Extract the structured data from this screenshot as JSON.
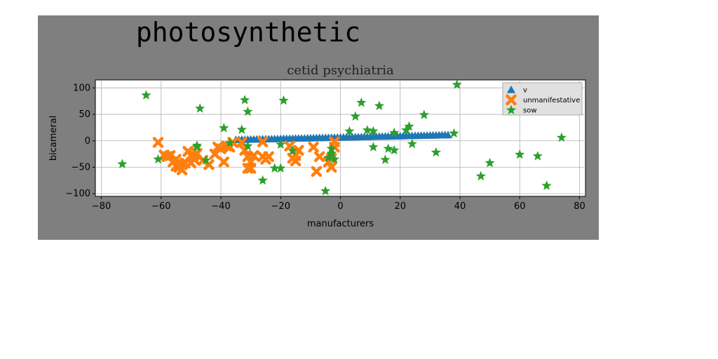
{
  "chart_data": {
    "type": "scatter",
    "suptitle": "photosynthetic",
    "title": "cetid psychiatria",
    "xlabel": "manufacturers",
    "ylabel": "bicameral",
    "xlim": [
      -82,
      82
    ],
    "ylim": [
      -105,
      115
    ],
    "xticks": [
      -80,
      -60,
      -40,
      -20,
      0,
      20,
      40,
      60,
      80
    ],
    "yticks": [
      -100,
      -50,
      0,
      50,
      100
    ],
    "grid": true,
    "legend_position": "top-right",
    "series": [
      {
        "name": "v",
        "marker": "triangle",
        "color": "#1f77b4",
        "x": [
          -35,
          -34,
          -33,
          -32,
          -31,
          -30,
          -29,
          -28,
          -27,
          -26,
          -25,
          -24,
          -23,
          -22,
          -21,
          -20,
          -19,
          -18,
          -17,
          -16,
          -15,
          -14,
          -13,
          -12,
          -11,
          -10,
          -9,
          -8,
          -7,
          -6,
          -5,
          -4,
          -3,
          -2,
          -1,
          0,
          1,
          2,
          3,
          4,
          5,
          6,
          7,
          8,
          9,
          10,
          11,
          12,
          13,
          14,
          15,
          16,
          17,
          18,
          19,
          20,
          21,
          22,
          23,
          24,
          25,
          26,
          27,
          28,
          29,
          30,
          31,
          32,
          33,
          34,
          35,
          36
        ],
        "y": [
          2,
          2.1,
          2.3,
          2.4,
          2.5,
          2.6,
          2.8,
          2.9,
          3,
          3.2,
          3.3,
          3.4,
          3.5,
          3.7,
          3.8,
          3.9,
          4.1,
          4.2,
          4.3,
          4.4,
          4.6,
          4.7,
          4.8,
          4.9,
          5.1,
          5.2,
          5.3,
          5.5,
          5.6,
          5.7,
          5.8,
          6,
          6.1,
          6.2,
          6.3,
          6.5,
          6.6,
          6.7,
          6.9,
          7,
          7.1,
          7.2,
          7.4,
          7.5,
          7.6,
          7.7,
          7.9,
          8,
          8.1,
          8.3,
          8.4,
          8.5,
          8.6,
          8.8,
          8.9,
          9,
          9.1,
          9.3,
          9.4,
          9.5,
          9.7,
          9.8,
          9.9,
          10,
          10.2,
          10.3,
          10.4,
          10.5,
          10.7,
          10.8,
          10.9,
          11
        ]
      },
      {
        "name": "unmanifestative",
        "marker": "x",
        "color": "#ff7f0e",
        "x": [
          -61,
          -59,
          -58,
          -57,
          -56,
          -55,
          -55,
          -54,
          -54,
          -53,
          -53,
          -52,
          -51,
          -50,
          -50,
          -49,
          -49,
          -48,
          -46,
          -44,
          -42,
          -41,
          -40,
          -39,
          -38,
          -37,
          -36,
          -33,
          -32,
          -31,
          -31,
          -30,
          -30,
          -29,
          -26,
          -26,
          -25,
          -24,
          -17,
          -16,
          -15,
          -15,
          -14,
          -9,
          -8,
          -7,
          -4,
          -3,
          -3,
          -2,
          -2
        ],
        "y": [
          -3,
          -27,
          -30,
          -28,
          -40,
          -48,
          -35,
          -50,
          -43,
          -45,
          -55,
          -42,
          -20,
          -28,
          -42,
          -35,
          -28,
          -24,
          -37,
          -45,
          -25,
          -12,
          -15,
          -40,
          -10,
          -12,
          -3,
          -3,
          -18,
          -30,
          -52,
          -40,
          -52,
          -28,
          -2,
          -30,
          -35,
          -30,
          -10,
          -33,
          -38,
          -28,
          -18,
          -12,
          -58,
          -30,
          -40,
          -50,
          -33,
          -12,
          -2
        ]
      },
      {
        "name": "sow",
        "marker": "star",
        "color": "#2ca02c",
        "x": [
          -73,
          -65,
          -61,
          -48,
          -47,
          -45,
          -48,
          -39,
          -37,
          -33,
          -32,
          -31,
          -31,
          -26,
          -22,
          -20,
          -20,
          -19,
          -16,
          -5,
          -4,
          -3,
          -3,
          -2,
          3,
          5,
          7,
          9,
          11,
          11,
          13,
          15,
          16,
          18,
          18,
          22,
          23,
          24,
          28,
          32,
          38,
          39,
          47,
          50,
          60,
          66,
          69,
          74
        ],
        "y": [
          -44,
          86,
          -35,
          -12,
          61,
          -37,
          -9,
          24,
          -4,
          21,
          77,
          55,
          -10,
          -75,
          -52,
          -52,
          -7,
          76,
          -19,
          -95,
          -32,
          -15,
          -24,
          -35,
          18,
          46,
          72,
          20,
          -12,
          18,
          66,
          -36,
          -15,
          -18,
          15,
          20,
          27,
          -6,
          49,
          -22,
          14,
          106,
          -67,
          -42,
          -26,
          -29,
          -85,
          6
        ]
      }
    ]
  }
}
